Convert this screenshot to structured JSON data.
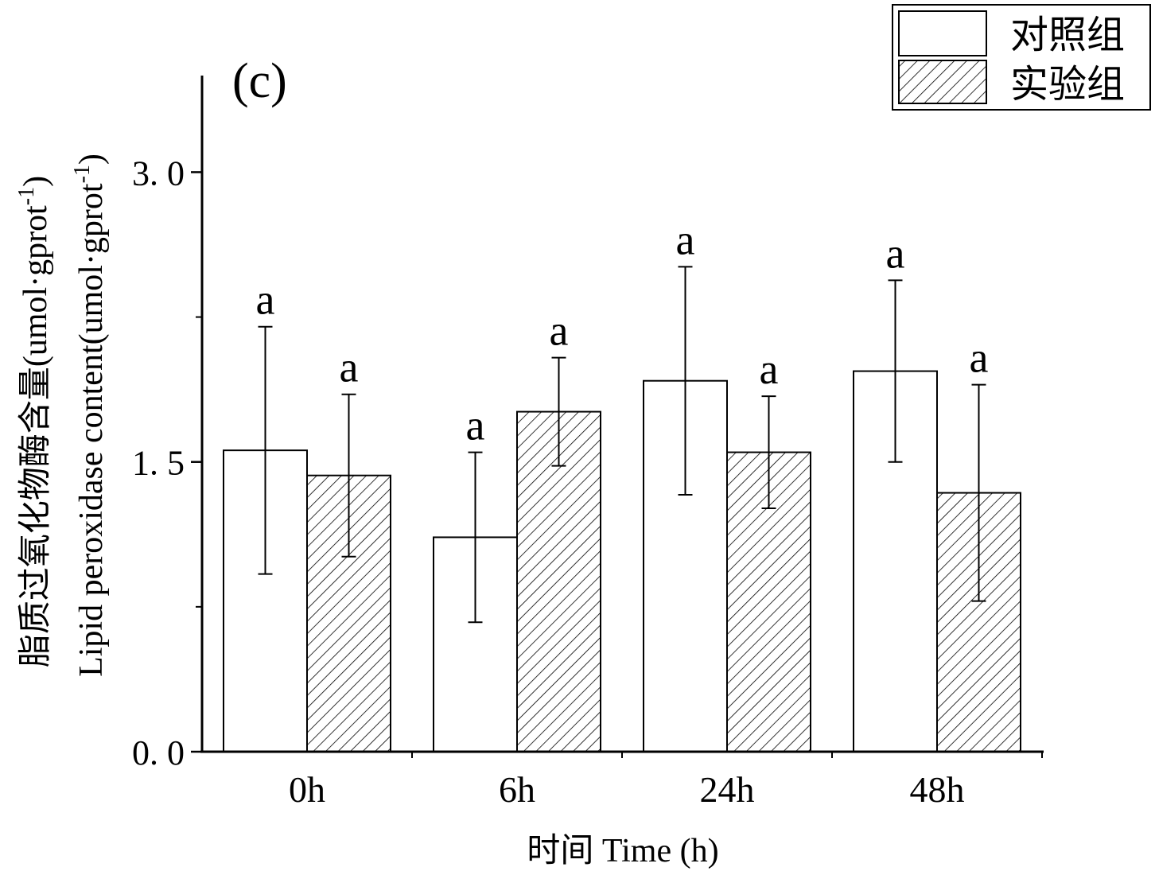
{
  "chart_data": {
    "type": "bar",
    "panel_label": "(c)",
    "categories": [
      "0h",
      "6h",
      "24h",
      "48h"
    ],
    "series": [
      {
        "name": "对照组",
        "fill": "none",
        "values": [
          1.56,
          1.11,
          1.92,
          1.97
        ],
        "errors": [
          0.64,
          0.44,
          0.59,
          0.47
        ],
        "labels": [
          "a",
          "a",
          "a",
          "a"
        ]
      },
      {
        "name": "实验组",
        "fill": "hatched",
        "values": [
          1.43,
          1.76,
          1.55,
          1.34
        ],
        "errors": [
          0.42,
          0.28,
          0.29,
          0.56
        ],
        "labels": [
          "a",
          "a",
          "a",
          "a"
        ]
      }
    ],
    "ylim": [
      0,
      3.5
    ],
    "yticks": [
      0,
      1.5,
      3.0
    ],
    "ytick_labels": [
      "0. 0",
      "1. 5",
      "3. 0"
    ],
    "y_minor_ticks": [
      0.75,
      2.25
    ],
    "xlabel": "时间 Time (h)",
    "ylabel_lines": [
      "脂质过氧化物酶含量(umol·gprot",
      "Lipid peroxidase content(umol·gprot"
    ],
    "ylabel_superscript": "-1",
    "legend_position": "top-right",
    "colors": {
      "axis": "#000000",
      "bar_fill": "#ffffff",
      "hatch": "#000000"
    }
  }
}
